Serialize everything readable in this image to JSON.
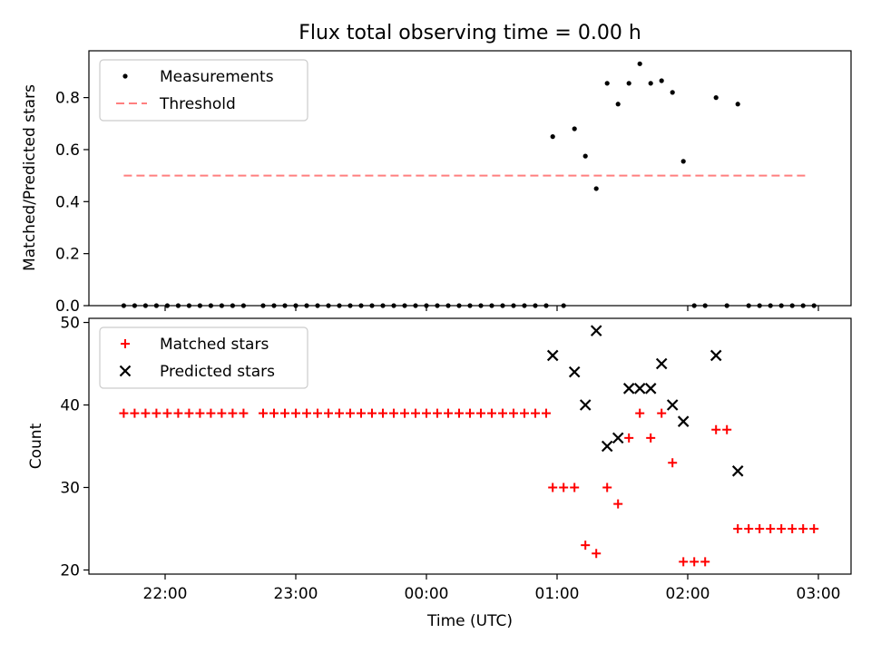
{
  "title": "Flux total observing time = 0.00 h",
  "chart_data": [
    {
      "type": "scatter",
      "panel": "top",
      "ylabel": "Matched/Predicted stars",
      "xlabel": "",
      "xlim": [
        "21:25",
        "03:15"
      ],
      "ylim": [
        0,
        0.98
      ],
      "yticks": [
        0.0,
        0.2,
        0.4,
        0.6,
        0.8
      ],
      "yticklabels": [
        "0.0",
        "0.2",
        "0.4",
        "0.6",
        "0.8"
      ],
      "grid": false,
      "legend": {
        "placement": "upper-left",
        "entries": [
          "Measurements",
          "Threshold"
        ]
      },
      "series": [
        {
          "name": "Measurements",
          "color": "#000000",
          "marker": "dot",
          "x": [
            "21:41",
            "21:46",
            "21:51",
            "21:56",
            "22:01",
            "22:06",
            "22:11",
            "22:16",
            "22:21",
            "22:26",
            "22:31",
            "22:36",
            "22:45",
            "22:50",
            "22:55",
            "23:00",
            "23:05",
            "23:10",
            "23:15",
            "23:20",
            "23:25",
            "23:30",
            "23:35",
            "23:40",
            "23:45",
            "23:50",
            "23:55",
            "00:00",
            "00:05",
            "00:10",
            "00:15",
            "00:20",
            "00:25",
            "00:30",
            "00:35",
            "00:40",
            "00:45",
            "00:50",
            "00:55",
            "00:58",
            "01:03",
            "01:08",
            "01:13",
            "01:18",
            "01:23",
            "01:28",
            "01:33",
            "01:38",
            "01:43",
            "01:48",
            "01:53",
            "01:58",
            "02:03",
            "02:08",
            "02:13",
            "02:18",
            "02:23",
            "02:28",
            "02:33",
            "02:38",
            "02:43",
            "02:48",
            "02:53",
            "02:58"
          ],
          "y": [
            0,
            0,
            0,
            0,
            0,
            0,
            0,
            0,
            0,
            0,
            0,
            0,
            0,
            0,
            0,
            0,
            0,
            0,
            0,
            0,
            0,
            0,
            0,
            0,
            0,
            0,
            0,
            0,
            0,
            0,
            0,
            0,
            0,
            0,
            0,
            0,
            0,
            0,
            0,
            0.65,
            0,
            0.68,
            0.575,
            0.45,
            0.855,
            0.775,
            0.855,
            0.93,
            0.855,
            0.865,
            0.82,
            0.555,
            0,
            0,
            0.8,
            0,
            0.775,
            0,
            0,
            0,
            0,
            0,
            0,
            0
          ]
        },
        {
          "name": "Threshold",
          "color": "#ff7f7f",
          "style": "dashed",
          "x": [
            "21:41",
            "02:56"
          ],
          "y": [
            0.5,
            0.5
          ]
        }
      ]
    },
    {
      "type": "scatter",
      "panel": "bottom",
      "ylabel": "Count",
      "xlabel": "Time (UTC)",
      "xlim": [
        "21:25",
        "03:15"
      ],
      "ylim": [
        19.5,
        50.5
      ],
      "yticks": [
        20,
        30,
        40,
        50
      ],
      "yticklabels": [
        "20",
        "30",
        "40",
        "50"
      ],
      "xticks": [
        "22:00",
        "23:00",
        "00:00",
        "01:00",
        "02:00",
        "03:00"
      ],
      "grid": false,
      "legend": {
        "placement": "upper-left",
        "entries": [
          "Matched stars",
          "Predicted stars"
        ]
      },
      "series": [
        {
          "name": "Matched stars",
          "color": "#ff0000",
          "marker": "plus",
          "x": [
            "21:41",
            "21:46",
            "21:51",
            "21:56",
            "22:01",
            "22:06",
            "22:11",
            "22:16",
            "22:21",
            "22:26",
            "22:31",
            "22:36",
            "22:45",
            "22:50",
            "22:55",
            "23:00",
            "23:05",
            "23:10",
            "23:15",
            "23:20",
            "23:25",
            "23:30",
            "23:35",
            "23:40",
            "23:45",
            "23:50",
            "23:55",
            "00:00",
            "00:05",
            "00:10",
            "00:15",
            "00:20",
            "00:25",
            "00:30",
            "00:35",
            "00:40",
            "00:45",
            "00:50",
            "00:55",
            "00:58",
            "01:03",
            "01:08",
            "01:13",
            "01:18",
            "01:23",
            "01:28",
            "01:33",
            "01:38",
            "01:43",
            "01:48",
            "01:53",
            "01:58",
            "02:03",
            "02:08",
            "02:13",
            "02:18",
            "02:23",
            "02:28",
            "02:33",
            "02:38",
            "02:43",
            "02:48",
            "02:53",
            "02:58"
          ],
          "y": [
            39,
            39,
            39,
            39,
            39,
            39,
            39,
            39,
            39,
            39,
            39,
            39,
            39,
            39,
            39,
            39,
            39,
            39,
            39,
            39,
            39,
            39,
            39,
            39,
            39,
            39,
            39,
            39,
            39,
            39,
            39,
            39,
            39,
            39,
            39,
            39,
            39,
            39,
            39,
            30,
            30,
            30,
            23,
            22,
            30,
            28,
            36,
            39,
            36,
            39,
            33,
            21,
            21,
            21,
            37,
            37,
            25,
            25,
            25,
            25,
            25,
            25,
            25,
            25
          ]
        },
        {
          "name": "Predicted stars",
          "color": "#000000",
          "marker": "x",
          "x": [
            "00:58",
            "01:08",
            "01:13",
            "01:18",
            "01:23",
            "01:28",
            "01:33",
            "01:38",
            "01:43",
            "01:48",
            "01:53",
            "01:58",
            "02:13",
            "02:23"
          ],
          "y": [
            46,
            44,
            40,
            49,
            35,
            36,
            42,
            42,
            42,
            45,
            40,
            38,
            46,
            32
          ]
        }
      ]
    }
  ]
}
